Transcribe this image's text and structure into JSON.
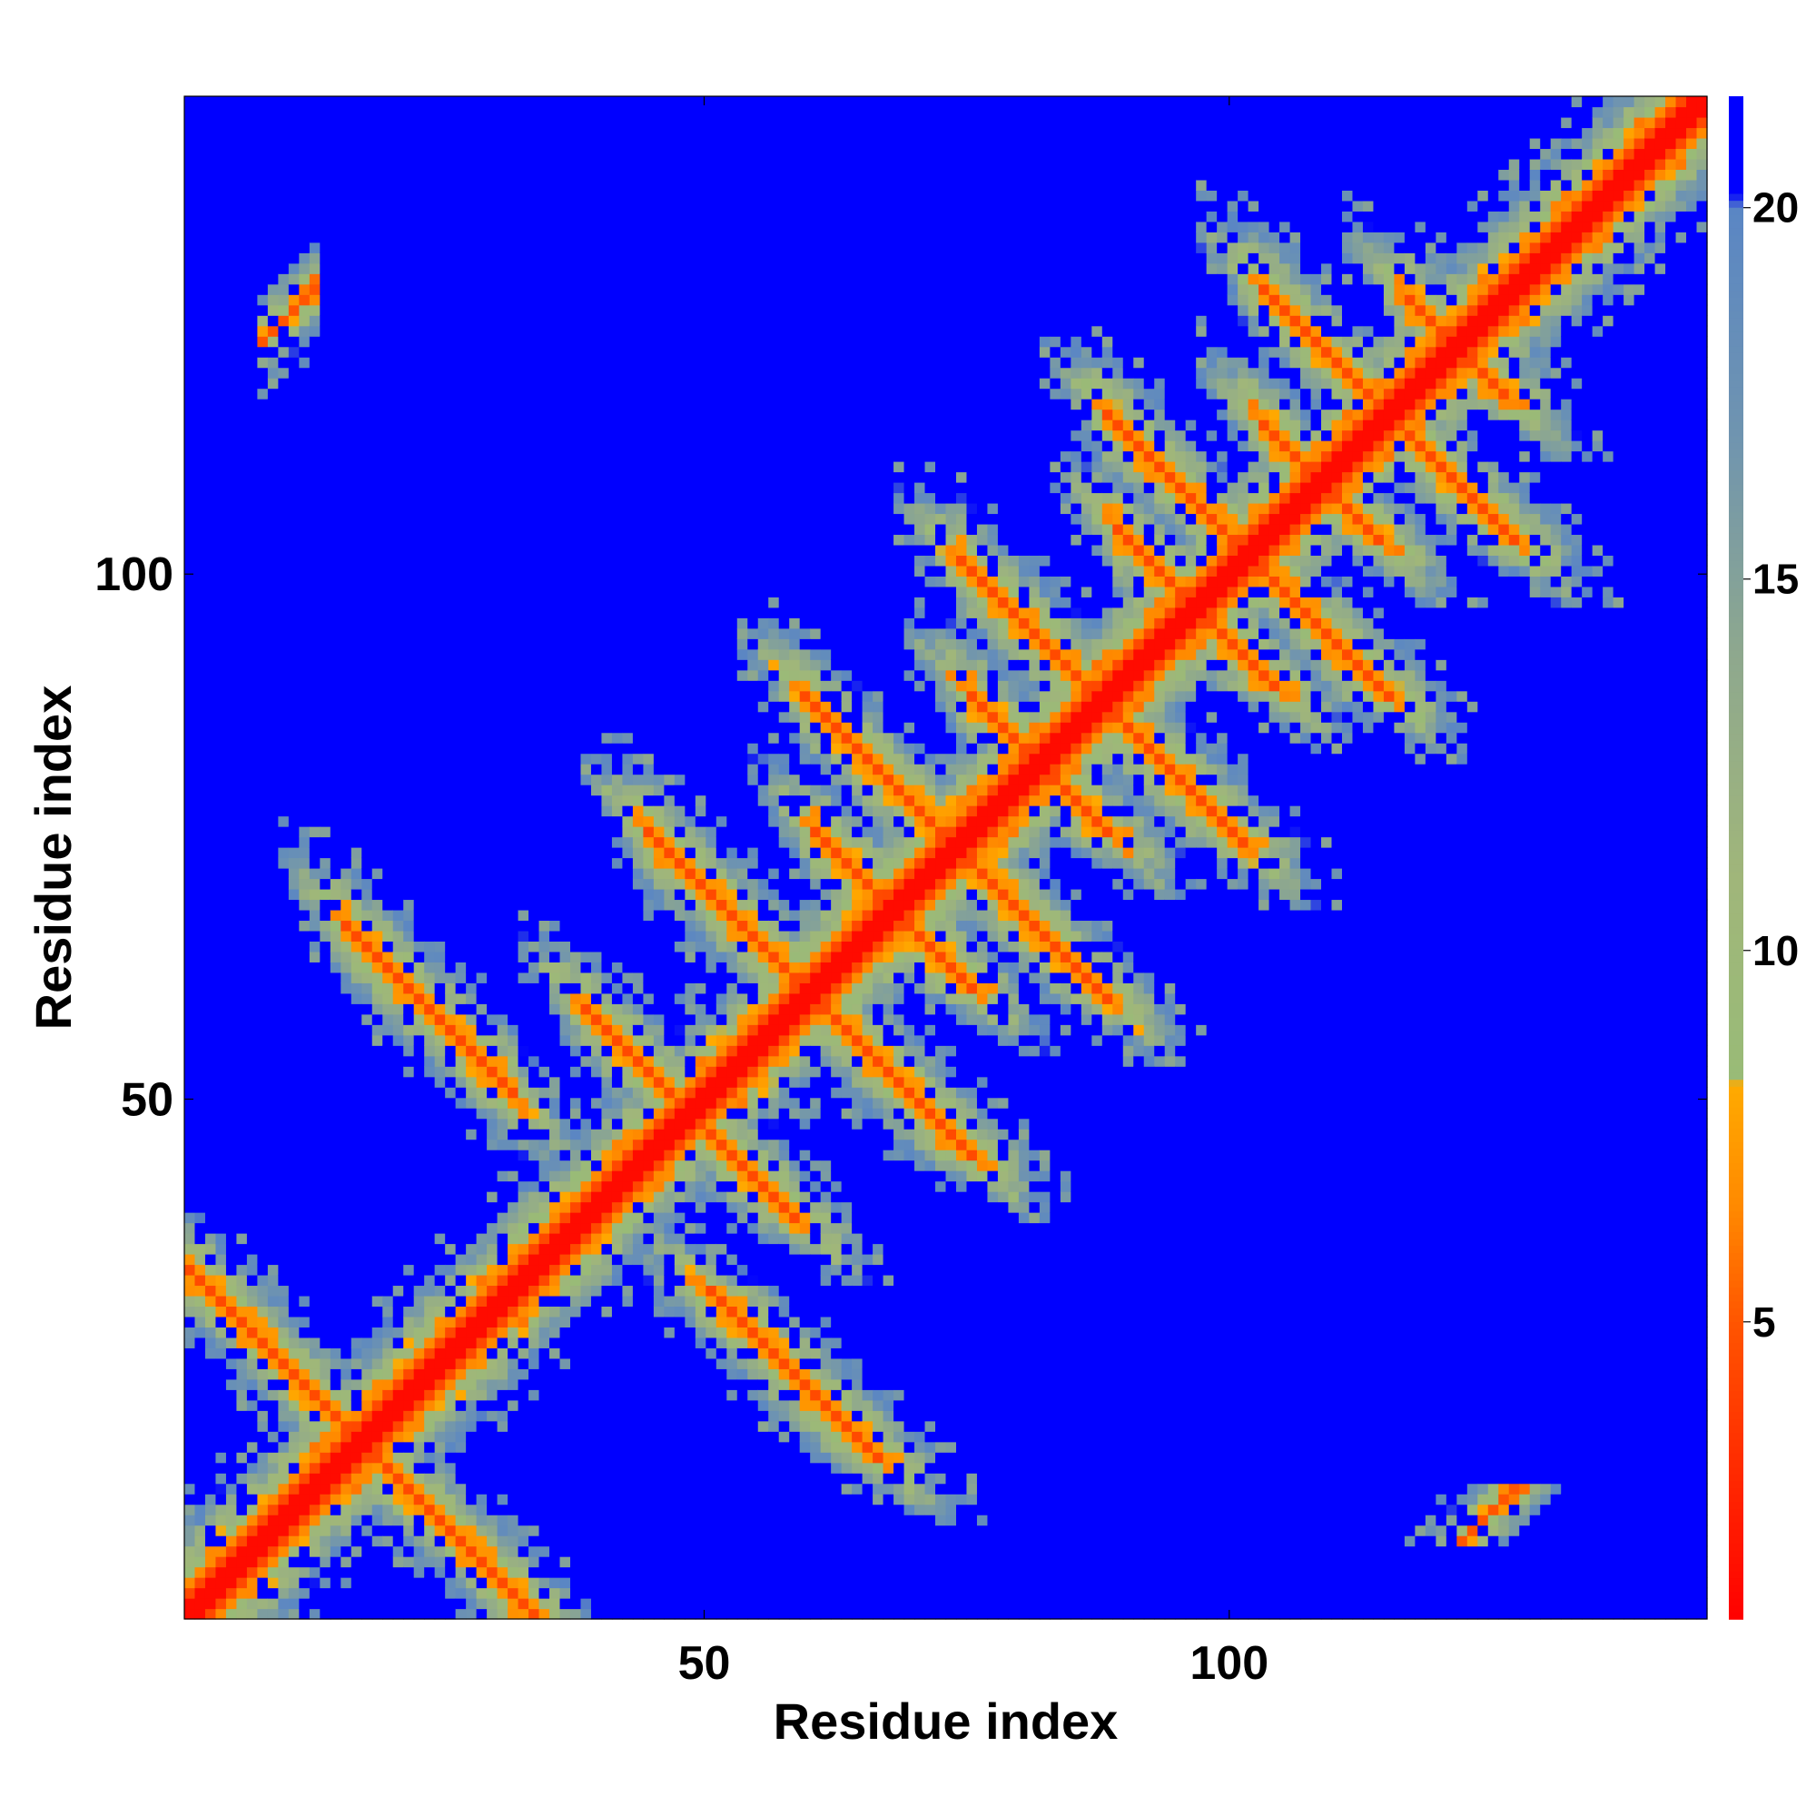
{
  "chart_data": {
    "type": "heatmap",
    "title": "",
    "xlabel": "Residue index",
    "ylabel": "Residue index",
    "n_residues": 146,
    "xlim": [
      0.5,
      145.5
    ],
    "ylim": [
      0.5,
      145.5
    ],
    "x_ticks": [
      50,
      100
    ],
    "y_ticks": [
      50,
      100
    ],
    "colorbar": {
      "min": 1,
      "max": 21.5,
      "ticks": [
        5,
        10,
        15,
        20
      ],
      "stops": [
        {
          "value": 1,
          "color": "#ff0000"
        },
        {
          "value": 3,
          "color": "#ff2a00"
        },
        {
          "value": 5,
          "color": "#ff5500"
        },
        {
          "value": 6.5,
          "color": "#ff8800"
        },
        {
          "value": 8.2,
          "color": "#ffaa00"
        },
        {
          "value": 8.3,
          "color": "#99bb77"
        },
        {
          "value": 11,
          "color": "#a0b67a"
        },
        {
          "value": 14,
          "color": "#8ea88e"
        },
        {
          "value": 17,
          "color": "#6f94b0"
        },
        {
          "value": 20,
          "color": "#5a86c4"
        },
        {
          "value": 20.2,
          "color": "#0000ff"
        },
        {
          "value": 21.5,
          "color": "#0000ff"
        }
      ]
    },
    "contact_bands": [
      {
        "kind": "diagonal",
        "min_distance": 0
      },
      {
        "kind": "antiparallel",
        "sum": 35,
        "lo": 1,
        "hi": 34
      },
      {
        "kind": "antiparallel",
        "sum": 83,
        "lo": 16,
        "hi": 32
      },
      {
        "kind": "antiparallel",
        "sum": 98,
        "lo": 39,
        "hi": 56
      },
      {
        "kind": "antiparallel",
        "sum": 121,
        "lo": 45,
        "hi": 75
      },
      {
        "kind": "antiparallel",
        "sum": 137,
        "lo": 61,
        "hi": 76
      },
      {
        "kind": "antiparallel",
        "sum": 149,
        "lo": 60,
        "hi": 88
      },
      {
        "kind": "antiparallel",
        "sum": 165,
        "lo": 76,
        "hi": 88
      },
      {
        "kind": "antiparallel",
        "sum": 177,
        "lo": 75,
        "hi": 101
      },
      {
        "kind": "antiparallel",
        "sum": 195,
        "lo": 90,
        "hi": 104
      },
      {
        "kind": "antiparallel",
        "sum": 205,
        "lo": 89,
        "hi": 115
      },
      {
        "kind": "antiparallel",
        "sum": 219,
        "lo": 104,
        "hi": 114
      },
      {
        "kind": "antiparallel",
        "sum": 232,
        "lo": 104,
        "hi": 128
      },
      {
        "kind": "antiparallel",
        "sum": 245,
        "lo": 118,
        "hi": 134
      },
      {
        "kind": "antiparallel",
        "sum": 263,
        "lo": 133,
        "hi": 145
      },
      {
        "kind": "parallel",
        "offset": 115,
        "lo": 9,
        "hi": 12
      }
    ],
    "legend": "none",
    "grid": false
  }
}
